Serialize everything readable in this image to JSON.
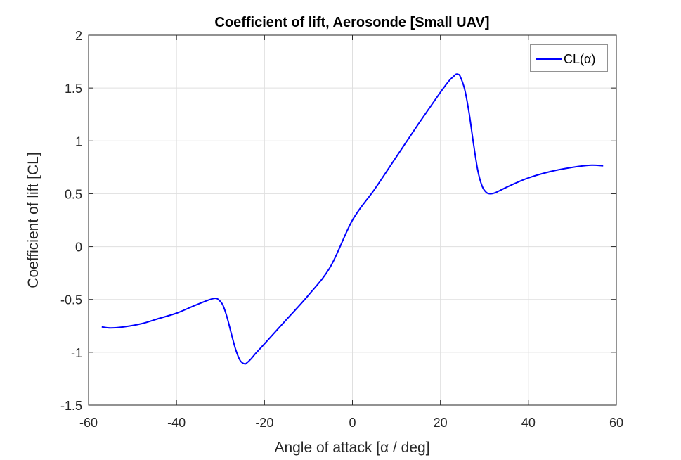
{
  "chart_data": {
    "type": "line",
    "title": "Coefficient of lift, Aerosonde [Small UAV]",
    "xlabel": "Angle of attack [α / deg]",
    "ylabel": "Coefficient of lift [CL]",
    "xlim": [
      -60,
      60
    ],
    "ylim": [
      -1.5,
      2
    ],
    "xticks": [
      "-60",
      "-40",
      "-20",
      "0",
      "20",
      "40",
      "60"
    ],
    "yticks": [
      "-1.5",
      "-1",
      "-0.5",
      "0",
      "0.5",
      "1",
      "1.5",
      "2"
    ],
    "grid": true,
    "legend_position": "top-right",
    "line_color": "#0000ff",
    "series": [
      {
        "name": "CL(α)",
        "x": [
          -57,
          -55,
          -52,
          -48,
          -44,
          -40,
          -36,
          -33,
          -31.5,
          -31,
          -30.5,
          -29.5,
          -28.5,
          -27.5,
          -26.5,
          -25.5,
          -24.5,
          -24,
          -23,
          -22,
          -20,
          -15,
          -10,
          -5,
          0,
          5,
          10,
          15,
          20,
          22,
          23,
          23.5,
          24,
          24.5,
          25.5,
          26.5,
          27.5,
          28.5,
          29.5,
          30.5,
          31.5,
          32.5,
          34,
          36,
          40,
          45,
          50,
          54,
          57
        ],
        "values": [
          -0.76,
          -0.77,
          -0.76,
          -0.73,
          -0.68,
          -0.63,
          -0.56,
          -0.51,
          -0.49,
          -0.49,
          -0.5,
          -0.55,
          -0.67,
          -0.83,
          -0.98,
          -1.08,
          -1.11,
          -1.1,
          -1.06,
          -1.01,
          -0.92,
          -0.69,
          -0.46,
          -0.19,
          0.25,
          0.54,
          0.85,
          1.16,
          1.46,
          1.57,
          1.61,
          1.63,
          1.63,
          1.61,
          1.49,
          1.27,
          0.98,
          0.72,
          0.57,
          0.51,
          0.5,
          0.51,
          0.54,
          0.58,
          0.65,
          0.71,
          0.75,
          0.77,
          0.765
        ]
      }
    ]
  }
}
